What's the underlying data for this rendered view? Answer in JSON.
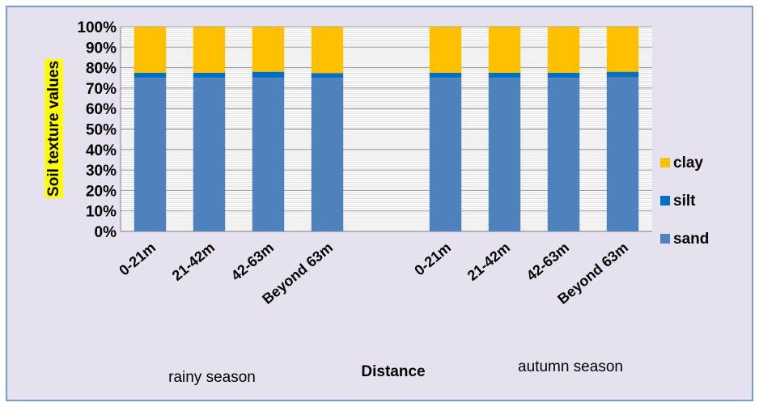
{
  "chart_data": {
    "type": "bar",
    "stacked": true,
    "percent_stacked": true,
    "categories": [
      "0-21m",
      "21-42m",
      "42-63m",
      "Beyond 63m",
      "0-21m",
      "21-42m",
      "42-63m",
      "Beyond 63m"
    ],
    "groups": [
      {
        "label": "rainy season",
        "category_indices": [
          0,
          1,
          2,
          3
        ]
      },
      {
        "label": "autumn season",
        "category_indices": [
          4,
          5,
          6,
          7
        ]
      }
    ],
    "series": [
      {
        "name": "sand",
        "color": "#4f81bd",
        "values": [
          75,
          75,
          75,
          75,
          75,
          75,
          75,
          75.5
        ]
      },
      {
        "name": "silt",
        "color": "#0070c0",
        "values": [
          2.5,
          2.5,
          3,
          2.3,
          2.5,
          2.5,
          2.5,
          2.5
        ]
      },
      {
        "name": "clay",
        "color": "#ffc000",
        "values": [
          22.5,
          22.5,
          22,
          22.7,
          22.5,
          22.5,
          22.5,
          22
        ]
      }
    ],
    "ylabel": "Soil texture values",
    "xlabel": "Distance",
    "ylim": [
      0,
      100
    ],
    "yticks": [
      "0%",
      "10%",
      "20%",
      "30%",
      "40%",
      "50%",
      "60%",
      "70%",
      "80%",
      "90%",
      "100%"
    ],
    "legend_position": "right",
    "legend_order": [
      "clay",
      "silt",
      "sand"
    ],
    "grid": true,
    "colors": {
      "background": "#e6e1ee",
      "border": "#4f81bd",
      "ylabel_highlight": "#ffff00",
      "gridline": "#c8c8c8"
    }
  }
}
